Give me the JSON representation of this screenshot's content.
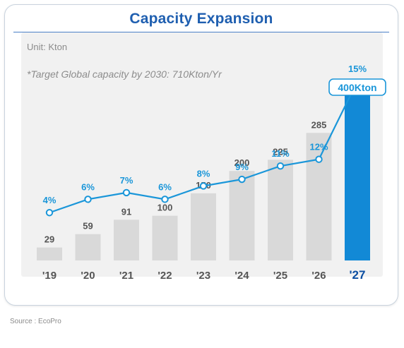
{
  "header": {
    "title": "Capacity Expansion"
  },
  "unit_label": "Unit: Kton",
  "target_note": "*Target Global capacity by 2030: 710Kton/Yr",
  "source": "Source : EcoPro",
  "colors": {
    "title": "#1f5fb0",
    "bar": "#d9d9d9",
    "bar_highlight": "#1289d6",
    "line": "#1a96d9",
    "callout_border": "#1a96d9",
    "label_text": "#555555",
    "pct_text": "#1a96d9",
    "highlight_axis_text": "#0b4ea2"
  },
  "chart_data": {
    "type": "bar",
    "categories": [
      "'19",
      "'20",
      "'21",
      "'22",
      "'23",
      "'24",
      "'25",
      "'26",
      "'27"
    ],
    "series": [
      {
        "values": [
          29,
          59,
          91,
          100,
          150,
          200,
          225,
          285,
          400
        ]
      },
      {
        "type": "line",
        "values": [
          4,
          6,
          7,
          6,
          8,
          9,
          11,
          12,
          15
        ]
      }
    ],
    "bar_labels": [
      "29",
      "59",
      "91",
      "100",
      "150",
      "200",
      "225",
      "285",
      "400Kton"
    ],
    "line_labels": [
      "4%",
      "6%",
      "7%",
      "6%",
      "8%",
      "9%",
      "11%",
      "12%",
      "15%"
    ],
    "highlight_index": 8,
    "title": "",
    "xlabel": "",
    "ylabel": "",
    "ylim": [
      0,
      400
    ],
    "grid": false
  }
}
